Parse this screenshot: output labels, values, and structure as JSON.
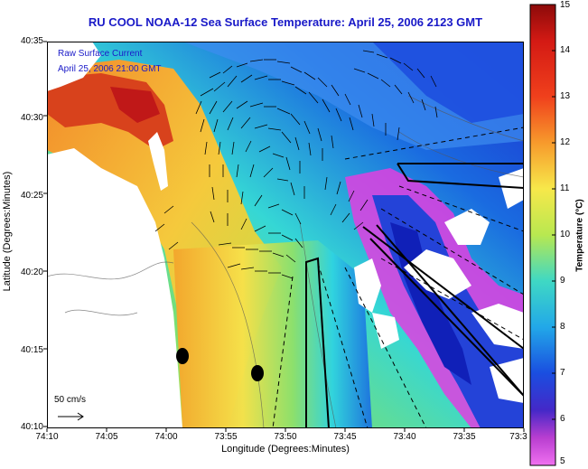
{
  "title": "RU COOL  NOAA-12  Sea Surface Temperature:  April 25, 2006 2123 GMT",
  "ylabel": "Latitude (Degrees:Minutes)",
  "xlabel": "Longitude (Degrees:Minutes)",
  "y_ticks": [
    "40:35",
    "40:30",
    "40:25",
    "40:20",
    "40:15",
    "40:10"
  ],
  "x_ticks": [
    "74:10",
    "74:05",
    "74:00",
    "73:55",
    "73:50",
    "73:45",
    "73:40",
    "73:35",
    "73:3"
  ],
  "legend": {
    "line1": "Raw Surface Current",
    "line2": "April 25, 2006 21:00 GMT"
  },
  "scale": {
    "label": "50 cm/s"
  },
  "colorbar": {
    "title": "Temperature (°C)",
    "ticks": [
      "15",
      "14",
      "13",
      "12",
      "11",
      "10",
      "9",
      "8",
      "7",
      "6",
      "5"
    ],
    "range": [
      5,
      15
    ]
  },
  "colors": {
    "title_text": "#1a1ac8",
    "warm": "#c81e14",
    "cold": "#1428c8",
    "low": "#e040e0",
    "land": "#ffffff",
    "vector": "#000000"
  }
}
